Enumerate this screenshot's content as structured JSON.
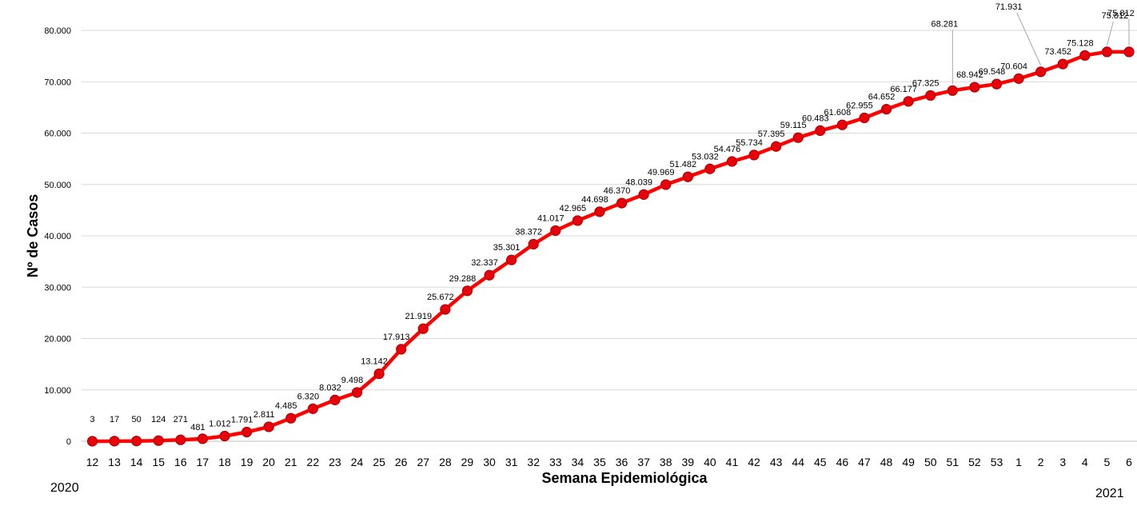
{
  "chart_data": {
    "type": "line",
    "title": "",
    "xlabel": "Semana Epidemiológica",
    "ylabel": "Nº de Casos",
    "ylim": [
      0,
      80000
    ],
    "yticks": [
      "0",
      "10.000",
      "20.000",
      "30.000",
      "40.000",
      "50.000",
      "60.000",
      "70.000",
      "80.000"
    ],
    "grid": "horizontal",
    "legend": "none",
    "line_color": "#ff0000",
    "marker_color": "#e8000b",
    "year_start_label": "2020",
    "year_end_label": "2021",
    "categories": [
      "12",
      "13",
      "14",
      "15",
      "16",
      "17",
      "18",
      "19",
      "20",
      "21",
      "22",
      "23",
      "24",
      "25",
      "26",
      "27",
      "28",
      "29",
      "30",
      "31",
      "32",
      "33",
      "34",
      "35",
      "36",
      "37",
      "38",
      "39",
      "40",
      "41",
      "42",
      "43",
      "44",
      "45",
      "46",
      "47",
      "48",
      "49",
      "50",
      "51",
      "52",
      "53",
      "1",
      "2",
      "3",
      "4",
      "5",
      "6"
    ],
    "values": [
      3,
      17,
      50,
      124,
      271,
      481,
      1012,
      1791,
      2811,
      4485,
      6320,
      8032,
      9498,
      13142,
      17913,
      21919,
      25672,
      29288,
      32337,
      35301,
      38372,
      41017,
      42965,
      44698,
      46370,
      48039,
      49969,
      51482,
      53032,
      54476,
      55734,
      57395,
      59115,
      60483,
      61608,
      62955,
      64652,
      66177,
      67325,
      68281,
      68942,
      69548,
      70604,
      71931,
      73452,
      75128,
      75812,
      75812
    ],
    "data_labels": [
      "3",
      "17",
      "50",
      "124",
      "271",
      "481",
      "1.012",
      "1.791",
      "2.811",
      "4.485",
      "6.320",
      "8.032",
      "9.498",
      "13.142",
      "17.913",
      "21.919",
      "25.672",
      "29.288",
      "32.337",
      "35.301",
      "38.372",
      "41.017",
      "42.965",
      "44.698",
      "46.370",
      "48.039",
      "49.969",
      "51.482",
      "53.032",
      "54.476",
      "55.734",
      "57.395",
      "59.115",
      "60.483",
      "61.608",
      "62.955",
      "64.652",
      "66.177",
      "67.325",
      "68.281",
      "68.942",
      "69.548",
      "70.604",
      "71.931",
      "73.452",
      "75.128",
      "75.812",
      "75.812"
    ]
  }
}
